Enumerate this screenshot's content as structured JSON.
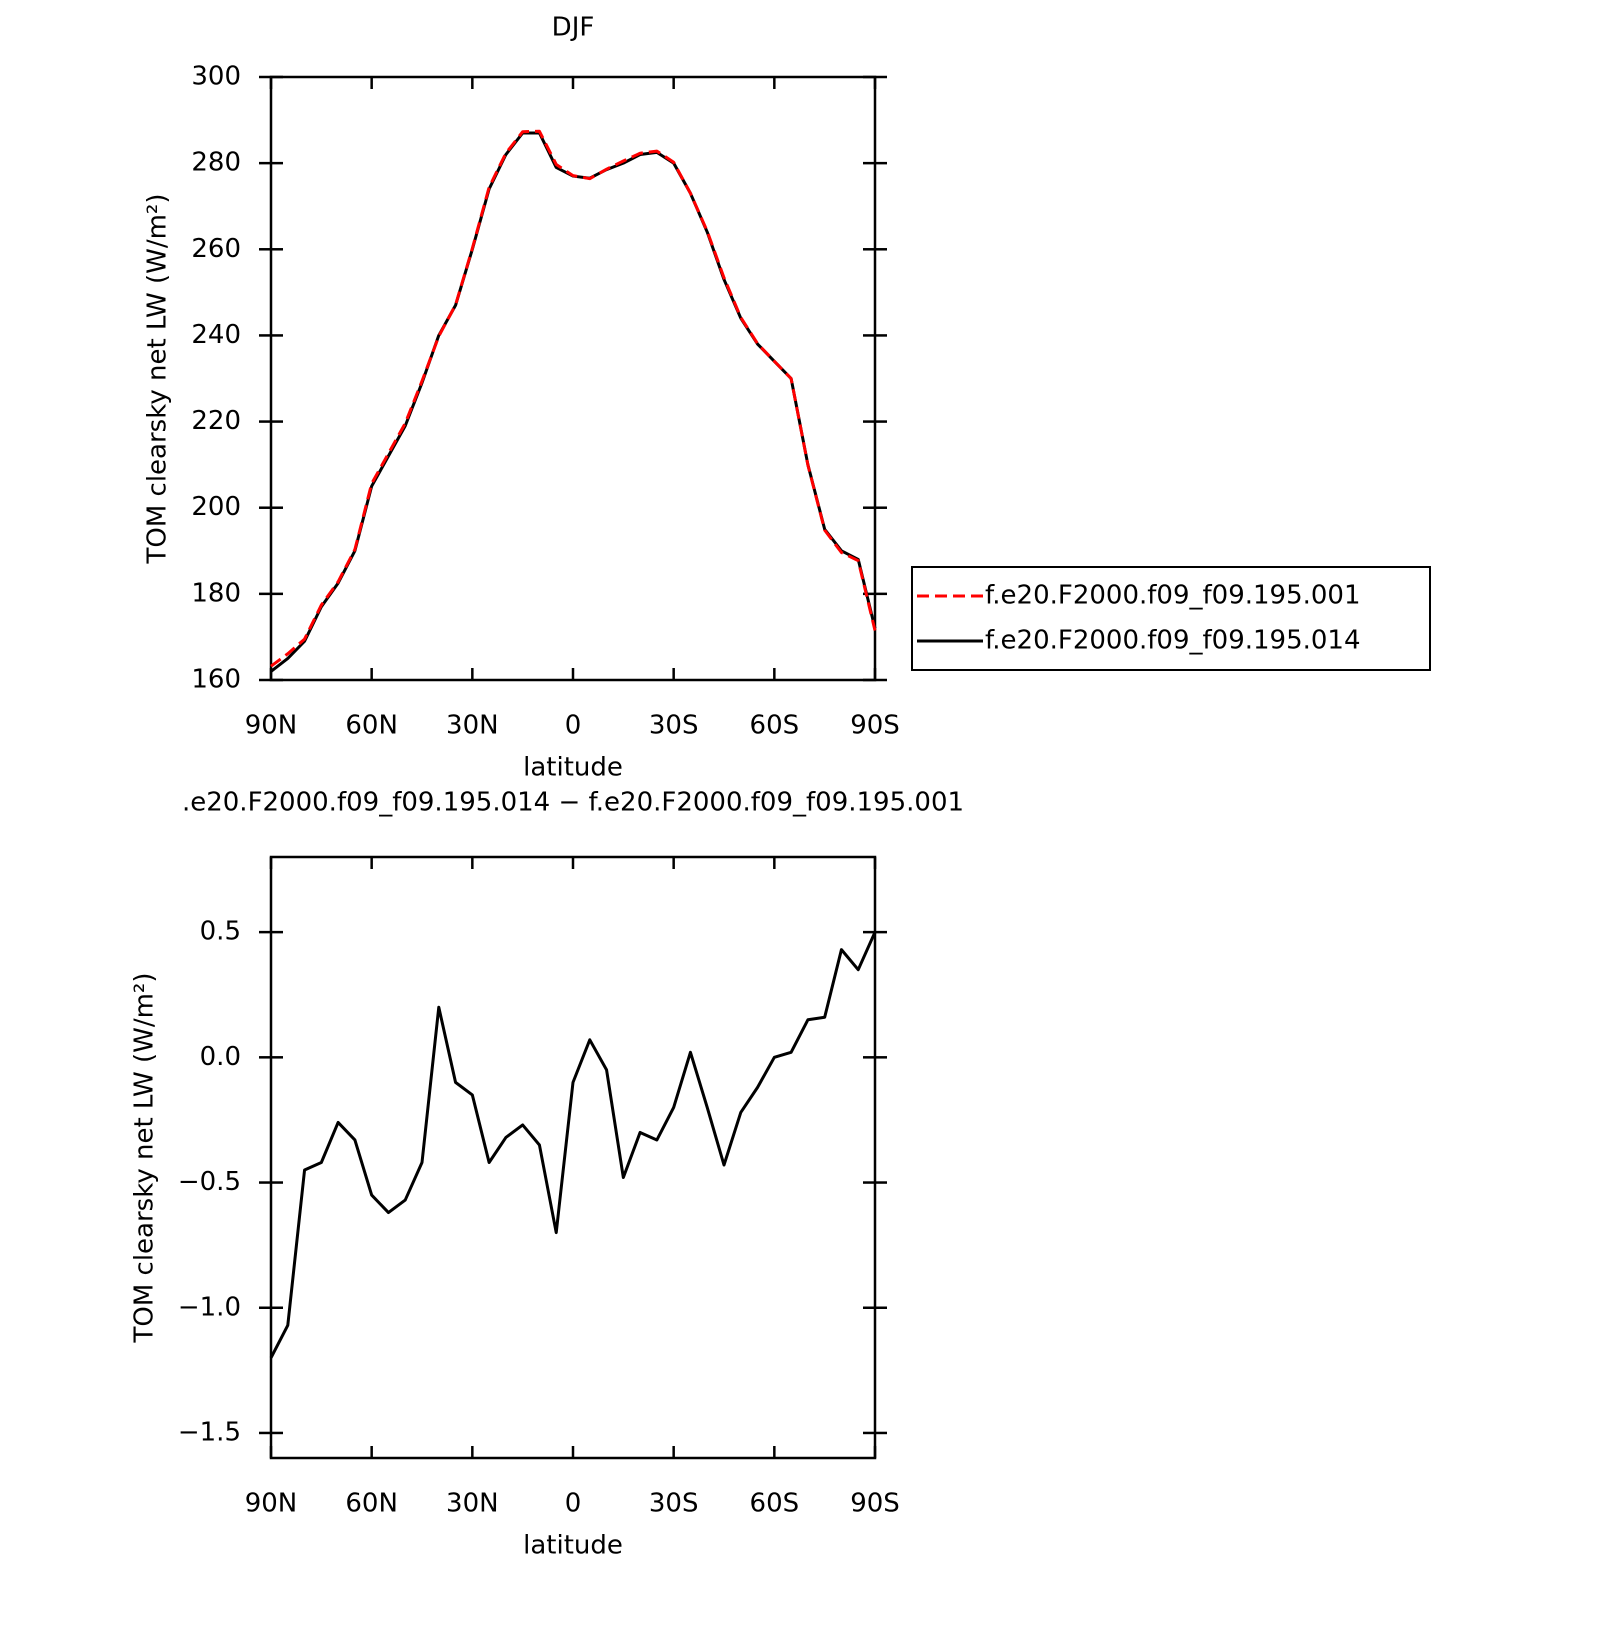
{
  "chart_data": [
    {
      "type": "line",
      "title": "DJF",
      "x": [
        90,
        85,
        80,
        75,
        70,
        65,
        60,
        55,
        50,
        45,
        40,
        35,
        30,
        25,
        20,
        15,
        10,
        5,
        0,
        -5,
        -10,
        -15,
        -20,
        -25,
        -30,
        -35,
        -40,
        -45,
        -50,
        -55,
        -60,
        -65,
        -70,
        -75,
        -80,
        -85,
        -90
      ],
      "series": [
        {
          "name": "f.e20.F2000.f09_f09.195.001",
          "color": "#ff0000",
          "dash": true,
          "values": [
            163.2,
            166.1,
            169.5,
            177.4,
            182.8,
            190.3,
            205.6,
            212.6,
            219.6,
            229.4,
            239.8,
            247.1,
            260.2,
            274.4,
            282.3,
            287.3,
            287.4,
            279.7,
            277.1,
            276.4,
            278.6,
            280.5,
            282.3,
            282.8,
            280.2,
            273.0,
            264.2,
            253.4,
            244.2,
            238.1,
            234,
            230.0,
            209.9,
            194.8,
            189.6,
            187.7,
            171.5
          ]
        },
        {
          "name": "f.e20.F2000.f09_f09.195.014",
          "color": "#000000",
          "dash": false,
          "values": [
            162,
            165,
            169,
            177,
            182.5,
            190,
            205,
            212,
            219,
            229,
            240,
            247,
            260,
            274,
            282,
            287,
            287,
            279,
            277,
            276.5,
            278.5,
            280,
            282,
            282.5,
            280,
            273,
            264,
            253,
            244,
            238,
            234,
            230,
            210,
            195,
            190,
            188,
            172
          ]
        }
      ],
      "xlim": [
        90,
        -90
      ],
      "xticks": [
        {
          "value": 90,
          "label": "90N"
        },
        {
          "value": 60,
          "label": "60N"
        },
        {
          "value": 30,
          "label": "30N"
        },
        0,
        {
          "value": -30,
          "label": "30S"
        },
        {
          "value": -60,
          "label": "60S"
        },
        {
          "value": -90,
          "label": "90S"
        }
      ],
      "ylim": [
        160,
        300
      ],
      "yticks": [
        160,
        180,
        200,
        220,
        240,
        260,
        280,
        300
      ],
      "xlabel": "latitude",
      "ylabel": "TOM clearsky net LW (W/m²)",
      "legend": "right"
    },
    {
      "type": "line",
      "title": ".e20.F2000.f09_f09.195.014 − f.e20.F2000.f09_f09.195.001",
      "x": [
        90,
        85,
        80,
        75,
        70,
        65,
        60,
        55,
        50,
        45,
        40,
        35,
        30,
        25,
        20,
        15,
        10,
        5,
        0,
        -5,
        -10,
        -15,
        -20,
        -25,
        -30,
        -35,
        -40,
        -45,
        -50,
        -55,
        -60,
        -65,
        -70,
        -75,
        -80,
        -85,
        -90
      ],
      "series": [
        {
          "color": "#000000",
          "dash": false,
          "values": [
            -1.2,
            -1.07,
            -0.45,
            -0.42,
            -0.26,
            -0.33,
            -0.55,
            -0.62,
            -0.57,
            -0.42,
            0.2,
            -0.1,
            -0.15,
            -0.42,
            -0.32,
            -0.27,
            -0.35,
            -0.7,
            -0.1,
            0.07,
            -0.05,
            -0.48,
            -0.3,
            -0.33,
            -0.2,
            0.02,
            -0.2,
            -0.43,
            -0.22,
            -0.12,
            0.0,
            0.02,
            0.15,
            0.16,
            0.43,
            0.35,
            0.5
          ]
        }
      ],
      "xlim": [
        90,
        -90
      ],
      "xticks": [
        {
          "value": 90,
          "label": "90N"
        },
        {
          "value": 60,
          "label": "60N"
        },
        {
          "value": 30,
          "label": "30N"
        },
        0,
        {
          "value": -30,
          "label": "30S"
        },
        {
          "value": -60,
          "label": "60S"
        },
        {
          "value": -90,
          "label": "90S"
        }
      ],
      "ylim": [
        -1.6,
        0.8
      ],
      "yticks": [
        {
          "value": -1.5,
          "label": "−1.5"
        },
        {
          "value": -1.0,
          "label": "−1.0"
        },
        {
          "value": -0.5,
          "label": "−0.5"
        },
        {
          "value": 0,
          "label": "0.0"
        },
        0.5
      ],
      "xlabel": "latitude",
      "ylabel": "TOM clearsky net LW (W/m²)"
    }
  ]
}
